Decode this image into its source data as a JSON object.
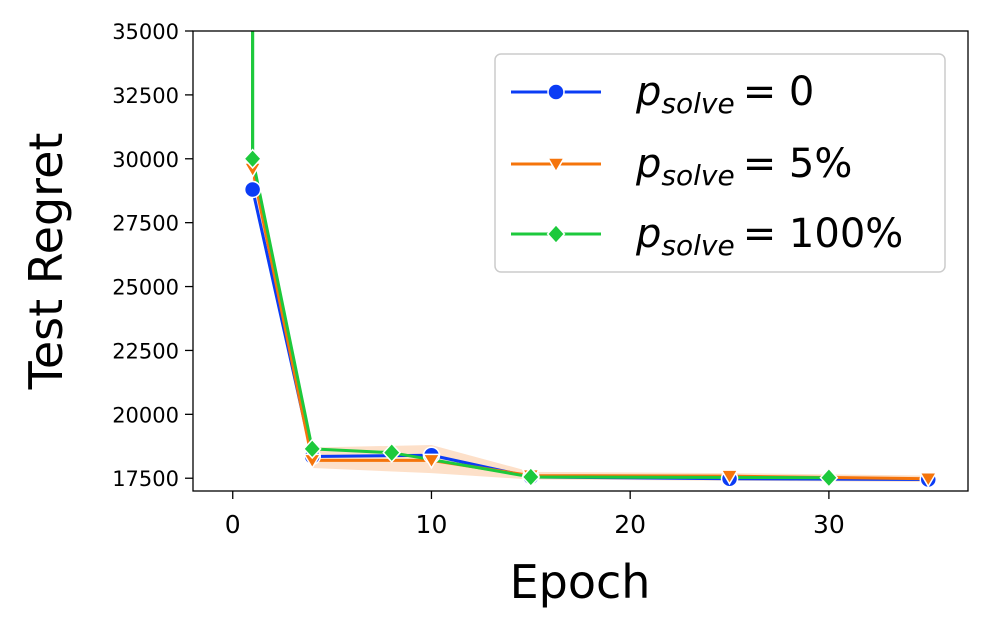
{
  "chart_data": {
    "type": "line",
    "title": "",
    "xlabel": "Epoch",
    "ylabel": "Test Regret",
    "xlim": [
      -2,
      37
    ],
    "ylim": [
      17000,
      35000
    ],
    "xticks": [
      0,
      10,
      20,
      30
    ],
    "xtick_labels": [
      "0",
      "10",
      "20",
      "30"
    ],
    "yticks": [
      17500,
      20000,
      22500,
      25000,
      27500,
      30000,
      32500,
      35000
    ],
    "ytick_labels": [
      "17500",
      "20000",
      "22500",
      "25000",
      "27500",
      "30000",
      "32500",
      "35000"
    ],
    "grid": false,
    "legend_position": "top-right",
    "series": [
      {
        "name": "p_solve = 0",
        "legend_main": "p",
        "legend_sub": "solve",
        "legend_value": "= 0",
        "color": "#0b3cf5",
        "marker": "circle",
        "x": [
          1,
          4,
          10,
          15,
          25,
          35
        ],
        "y": [
          28800,
          18350,
          18400,
          17550,
          17480,
          17450
        ]
      },
      {
        "name": "p_solve = 5%",
        "legend_main": "p",
        "legend_sub": "solve",
        "legend_value": "= 5%",
        "color": "#f5740b",
        "marker": "triangle-down",
        "x": [
          1,
          4,
          10,
          15,
          25,
          35
        ],
        "y": [
          29600,
          18200,
          18200,
          17600,
          17580,
          17480
        ],
        "band_lower": [
          29000,
          17900,
          17700,
          17450,
          17400,
          17350
        ],
        "band_upper": [
          30200,
          18700,
          18800,
          17750,
          17700,
          17600
        ]
      },
      {
        "name": "p_solve = 100%",
        "legend_main": "p",
        "legend_sub": "solve",
        "legend_value": "= 100%",
        "color": "#1dc93c",
        "marker": "diamond",
        "x": [
          1,
          4,
          8,
          15,
          30
        ],
        "y": [
          30000,
          18650,
          18500,
          17550,
          17520
        ],
        "spike": {
          "x": 1,
          "y_from": 35000,
          "y_to": 30000
        }
      }
    ]
  }
}
